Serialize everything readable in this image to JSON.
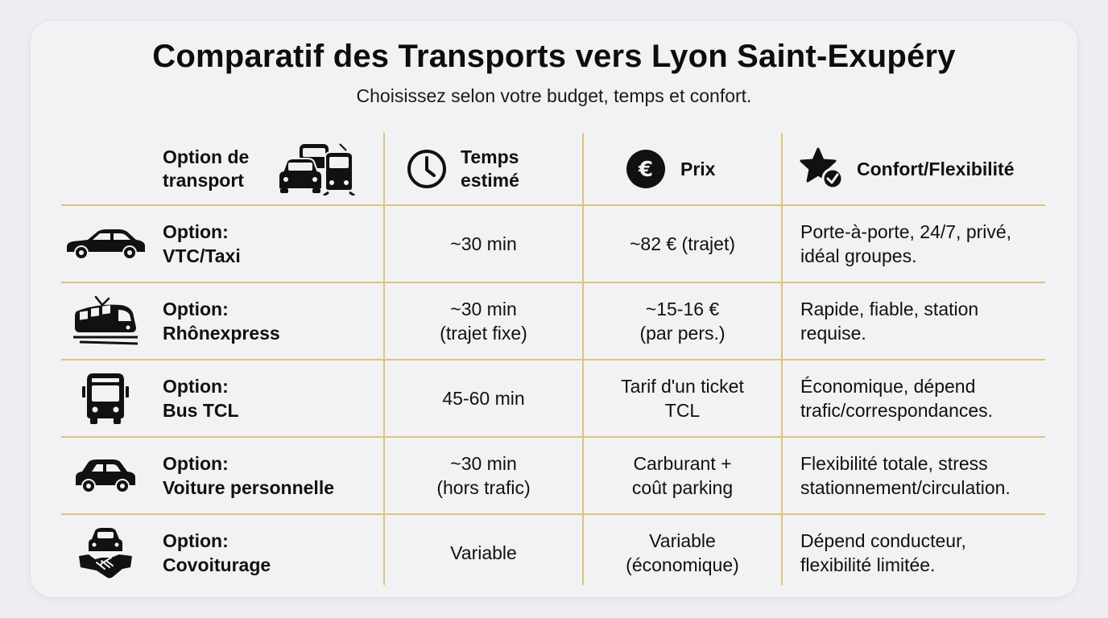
{
  "title": "Comparatif des Transports vers Lyon Saint-Exupéry",
  "subtitle": "Choisissez selon votre budget, temps et confort.",
  "headers": {
    "option": [
      "Option de",
      "transport"
    ],
    "time": [
      "Temps",
      "estimé"
    ],
    "price": "Prix",
    "comfort": "Confort/Flexibilité"
  },
  "rows": [
    {
      "icon": "car-sedan-icon",
      "label": [
        "Option:",
        "VTC/Taxi"
      ],
      "time": [
        "~30 min"
      ],
      "price": [
        "~82 € (trajet)"
      ],
      "comfort": [
        "Porte-à-porte, 24/7, privé,",
        "idéal groupes."
      ]
    },
    {
      "icon": "tram-icon",
      "label": [
        "Option:",
        "Rhônexpress"
      ],
      "time": [
        "~30 min",
        "(trajet fixe)"
      ],
      "price": [
        "~15-16 €",
        "(par pers.)"
      ],
      "comfort": [
        "Rapide, fiable, station",
        "requise."
      ]
    },
    {
      "icon": "bus-icon",
      "label": [
        "Option:",
        "Bus TCL"
      ],
      "time": [
        "45-60 min"
      ],
      "price": [
        "Tarif d'un ticket",
        "TCL"
      ],
      "comfort": [
        "Économique, dépend",
        "trafic/correspondances."
      ]
    },
    {
      "icon": "car-icon",
      "label": [
        "Option:",
        "Voiture personnelle"
      ],
      "time": [
        "~30 min",
        "(hors trafic)"
      ],
      "price": [
        "Carburant +",
        "coût parking"
      ],
      "comfort": [
        "Flexibilité totale, stress",
        "stationnement/circulation."
      ]
    },
    {
      "icon": "carpool-handshake-icon",
      "label": [
        "Option:",
        "Covoiturage"
      ],
      "time": [
        "Variable"
      ],
      "price": [
        "Variable",
        "(économique)"
      ],
      "comfort": [
        "Dépend conducteur,",
        "flexibilité limitée."
      ]
    }
  ]
}
